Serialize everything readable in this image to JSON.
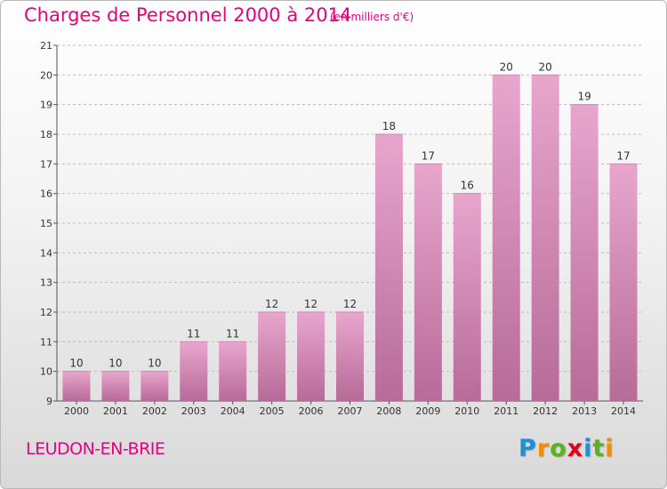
{
  "header": {
    "title": "Charges de Personnel 2000 à 2014",
    "subtitle": "(en milliers d'€)"
  },
  "footer": {
    "commune": "LEUDON-EN-BRIE",
    "logo": "Proxiti",
    "logo_colors": [
      "#1f8fd6",
      "#f28c00",
      "#5ab21f",
      "#e2001a",
      "#1f8fd6",
      "#5ab21f",
      "#f28c00"
    ]
  },
  "colors": {
    "text_accent": "#e8007d",
    "bar_top": "#e8a6cd",
    "bar_bottom": "#b76b98",
    "grid": "#bdbdbd"
  },
  "chart_data": {
    "type": "bar",
    "categories": [
      "2000",
      "2001",
      "2002",
      "2003",
      "2004",
      "2005",
      "2006",
      "2007",
      "2008",
      "2009",
      "2010",
      "2011",
      "2012",
      "2013",
      "2014"
    ],
    "values": [
      10,
      10,
      10,
      11,
      11,
      12,
      12,
      12,
      18,
      17,
      16,
      20,
      20,
      19,
      17
    ],
    "title": "Charges de Personnel 2000 à 2014",
    "subtitle": "(en milliers d'€)",
    "ylim": [
      9,
      21
    ],
    "yticks": [
      9,
      10,
      11,
      12,
      13,
      14,
      15,
      16,
      17,
      18,
      19,
      20,
      21
    ],
    "grid": true,
    "data_labels": true
  }
}
